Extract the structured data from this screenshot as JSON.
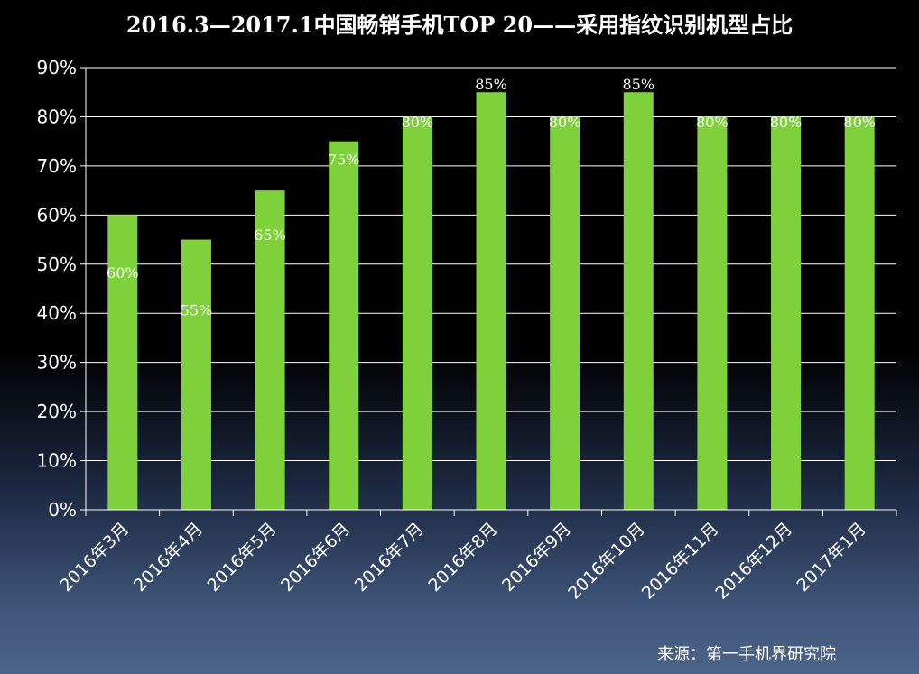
{
  "chart_data": {
    "type": "bar",
    "title": "2016.3—2017.1中国畅销手机TOP 20——采用指纹识别机型占比",
    "categories": [
      "2016年3月",
      "2016年4月",
      "2016年5月",
      "2016年6月",
      "2016年7月",
      "2016年8月",
      "2016年9月",
      "2016年10月",
      "2016年11月",
      "2016年12月",
      "2017年1月"
    ],
    "values": [
      60,
      55,
      65,
      75,
      80,
      85,
      80,
      85,
      80,
      80,
      80
    ],
    "data_labels": [
      "60%",
      "55%",
      "65%",
      "75%",
      "80%",
      "85%",
      "80%",
      "85%",
      "80%",
      "80%",
      "80%"
    ],
    "y_ticks": [
      "0%",
      "10%",
      "20%",
      "30%",
      "40%",
      "50%",
      "60%",
      "70%",
      "80%",
      "90%"
    ],
    "ylim": [
      0,
      90
    ],
    "grid": true,
    "legend": "none",
    "bar_color": "#7fd13b",
    "grid_color": "#ffffff",
    "text_color": "#ffffff"
  },
  "source": "来源：第一手机界研究院"
}
